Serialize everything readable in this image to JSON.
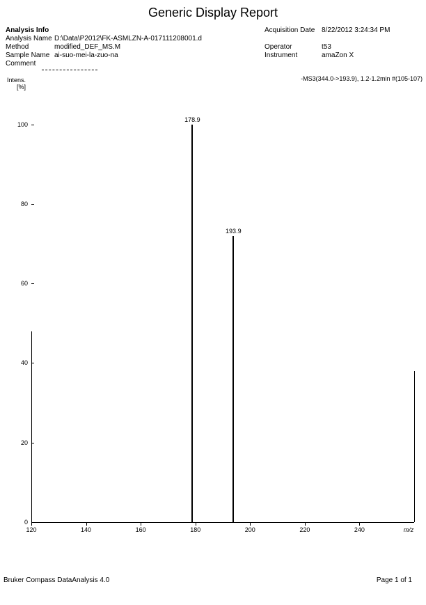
{
  "report": {
    "title": "Generic Display Report",
    "footer_left": "Bruker Compass DataAnalysis 4.0",
    "footer_right": "Page 1 of 1"
  },
  "info": {
    "section_header": "Analysis Info",
    "analysis_name_label": "Analysis Name",
    "analysis_name_value": "D:\\Data\\P2012\\FK-ASMLZN-A-017111208001.d",
    "method_label": "Method",
    "method_value": "modified_DEF_MS.M",
    "sample_name_label": "Sample Name",
    "sample_name_value": "ai-suo-mei-la-zuo-na",
    "comment_label": "Comment",
    "comment_value": "",
    "acq_date_label": "Acquisition Date",
    "acq_date_value": "8/22/2012 3:24:34 PM",
    "operator_label": "Operator",
    "operator_value": "t53",
    "instrument_label": "Instrument",
    "instrument_value": "amaZon X"
  },
  "chart": {
    "type": "mass-spectrum",
    "y_axis_title_line1": "Intens.",
    "y_axis_title_line2": "[%]",
    "annotation": "-MS3(344.0->193.9), 1.2-1.2min #(105-107)",
    "x_axis_end_label": "m/z",
    "xlim_min": 120,
    "xlim_max": 260,
    "ylim_min": 0,
    "ylim_max": 105,
    "x_ticks": [
      120,
      140,
      160,
      180,
      200,
      220,
      240
    ],
    "y_ticks": [
      0,
      20,
      40,
      60,
      80,
      100
    ],
    "peaks": [
      {
        "mz": 178.9,
        "intensity": 100,
        "label": "178.9"
      },
      {
        "mz": 193.9,
        "intensity": 72,
        "label": "193.9"
      }
    ],
    "noise_segments": [
      {
        "mz": 120,
        "h": 48
      },
      {
        "mz": 260,
        "h": 38
      }
    ],
    "colors": {
      "background": "#ffffff",
      "line": "#000000",
      "text": "#000000"
    },
    "fontsize_tick": 9,
    "fontsize_title": 18,
    "fontsize_info": 10
  }
}
